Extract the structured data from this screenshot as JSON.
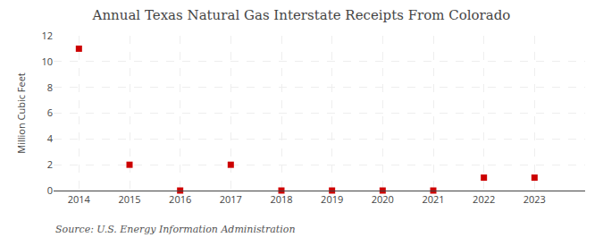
{
  "chart_data": {
    "type": "scatter",
    "title": "Annual Texas Natural Gas Interstate Receipts From Colorado",
    "ylabel": "Million Cubic Feet",
    "annotations": [
      "Source: U.S. Energy Information Administration"
    ],
    "x": [
      2014,
      2015,
      2016,
      2017,
      2018,
      2019,
      2020,
      2021,
      2022,
      2023
    ],
    "values": [
      11,
      2,
      0,
      2,
      0,
      0,
      0,
      0,
      1,
      1
    ],
    "color": "#cc0000",
    "marker": "square",
    "xlim": [
      2013.5,
      2024.0
    ],
    "xticks": [
      2014,
      2015,
      2016,
      2017,
      2018,
      2019,
      2020,
      2021,
      2022,
      2023
    ],
    "ylim": [
      0,
      12
    ],
    "yticks": [
      0,
      2,
      4,
      6,
      8,
      10,
      12
    ],
    "grid": true
  }
}
